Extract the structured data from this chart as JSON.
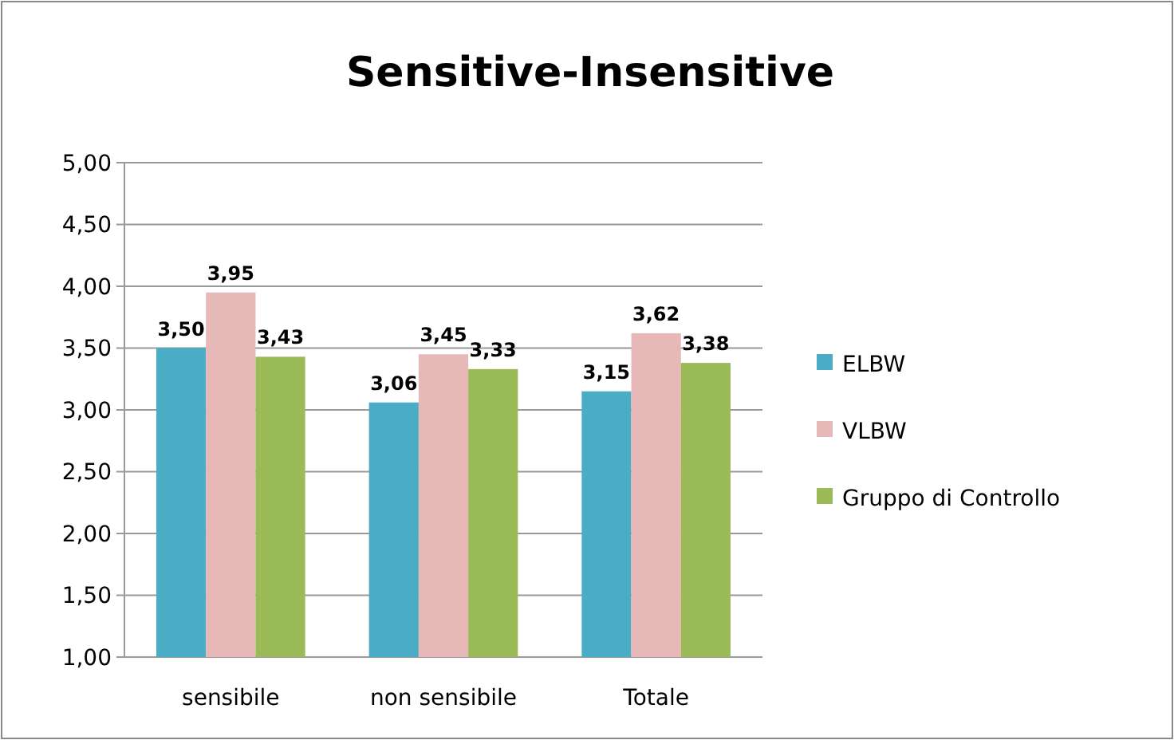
{
  "chart_data": {
    "type": "bar",
    "title": "Sensitive-Insensitive",
    "categories": [
      "sensibile",
      "non sensibile",
      "Totale"
    ],
    "series": [
      {
        "name": "ELBW",
        "color": "#4bacc6",
        "values": [
          3.5,
          3.06,
          3.15
        ],
        "value_labels": [
          "3,50",
          "3,06",
          "3,15"
        ]
      },
      {
        "name": "VLBW",
        "color": "#e6b9b8",
        "values": [
          3.95,
          3.45,
          3.62
        ],
        "value_labels": [
          "3,95",
          "3,45",
          "3,62"
        ]
      },
      {
        "name": "Gruppo di Controllo",
        "color": "#9bbb59",
        "values": [
          3.43,
          3.33,
          3.38
        ],
        "value_labels": [
          "3,43",
          "3,33",
          "3,38"
        ]
      }
    ],
    "ylim": [
      1,
      5
    ],
    "yticks": [
      {
        "value": 1,
        "label": "1,00"
      },
      {
        "value": 1.5,
        "label": "1,50"
      },
      {
        "value": 2,
        "label": "2,00"
      },
      {
        "value": 2.5,
        "label": "2,50"
      },
      {
        "value": 3,
        "label": "3,00"
      },
      {
        "value": 3.5,
        "label": "3,50"
      },
      {
        "value": 4,
        "label": "4,00"
      },
      {
        "value": 4.5,
        "label": "4,50"
      },
      {
        "value": 5,
        "label": "5,00"
      }
    ],
    "grid": "y",
    "legend": "right"
  }
}
